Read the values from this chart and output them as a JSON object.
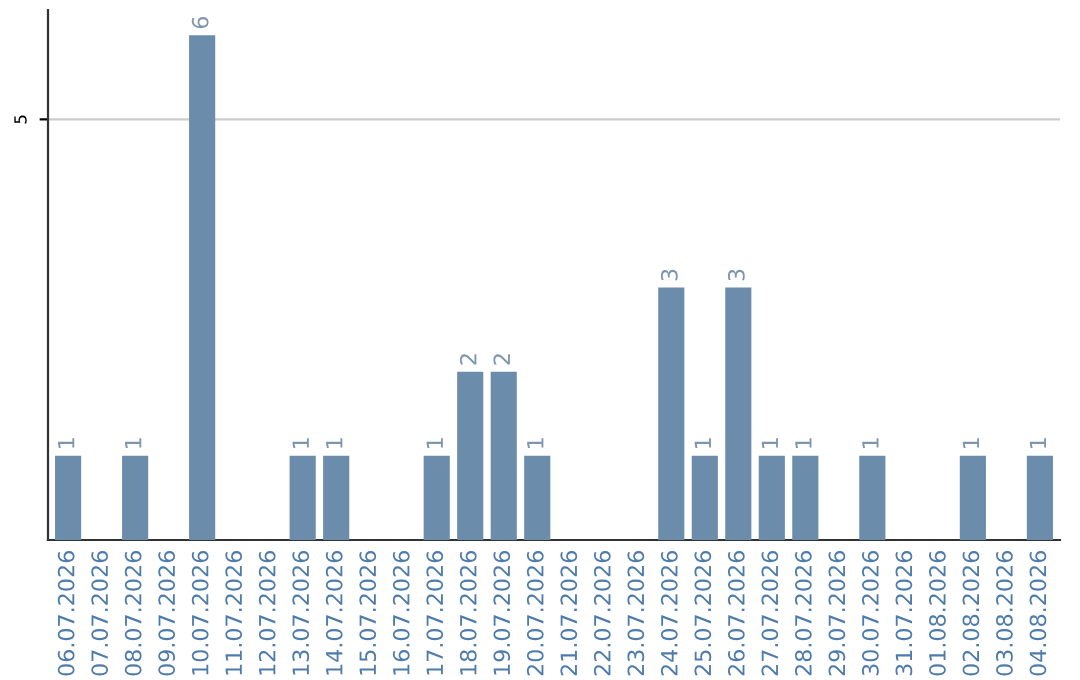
{
  "chart_data": {
    "type": "bar",
    "categories": [
      "06.07.2026",
      "07.07.2026",
      "08.07.2026",
      "09.07.2026",
      "10.07.2026",
      "11.07.2026",
      "12.07.2026",
      "13.07.2026",
      "14.07.2026",
      "15.07.2026",
      "16.07.2026",
      "17.07.2026",
      "18.07.2026",
      "19.07.2026",
      "20.07.2026",
      "21.07.2026",
      "22.07.2026",
      "23.07.2026",
      "24.07.2026",
      "25.07.2026",
      "26.07.2026",
      "27.07.2026",
      "28.07.2026",
      "29.07.2026",
      "30.07.2026",
      "31.07.2026",
      "01.08.2026",
      "02.08.2026",
      "03.08.2026",
      "04.08.2026"
    ],
    "values": [
      1,
      0,
      1,
      0,
      6,
      0,
      0,
      1,
      1,
      0,
      0,
      1,
      2,
      2,
      1,
      0,
      0,
      0,
      3,
      1,
      3,
      1,
      1,
      0,
      1,
      0,
      0,
      1,
      0,
      1
    ],
    "value_labels": [
      "1",
      null,
      "1",
      null,
      "6",
      null,
      null,
      "1",
      "1",
      null,
      null,
      "1",
      "2",
      "2",
      "1",
      null,
      null,
      null,
      "3",
      "1",
      "3",
      "1",
      "1",
      null,
      "1",
      null,
      null,
      "1",
      null,
      "1"
    ],
    "color": "#6b8cab",
    "ylim": [
      0,
      6.3
    ],
    "yticks": [
      5
    ],
    "grid": "y",
    "legend": false
  }
}
